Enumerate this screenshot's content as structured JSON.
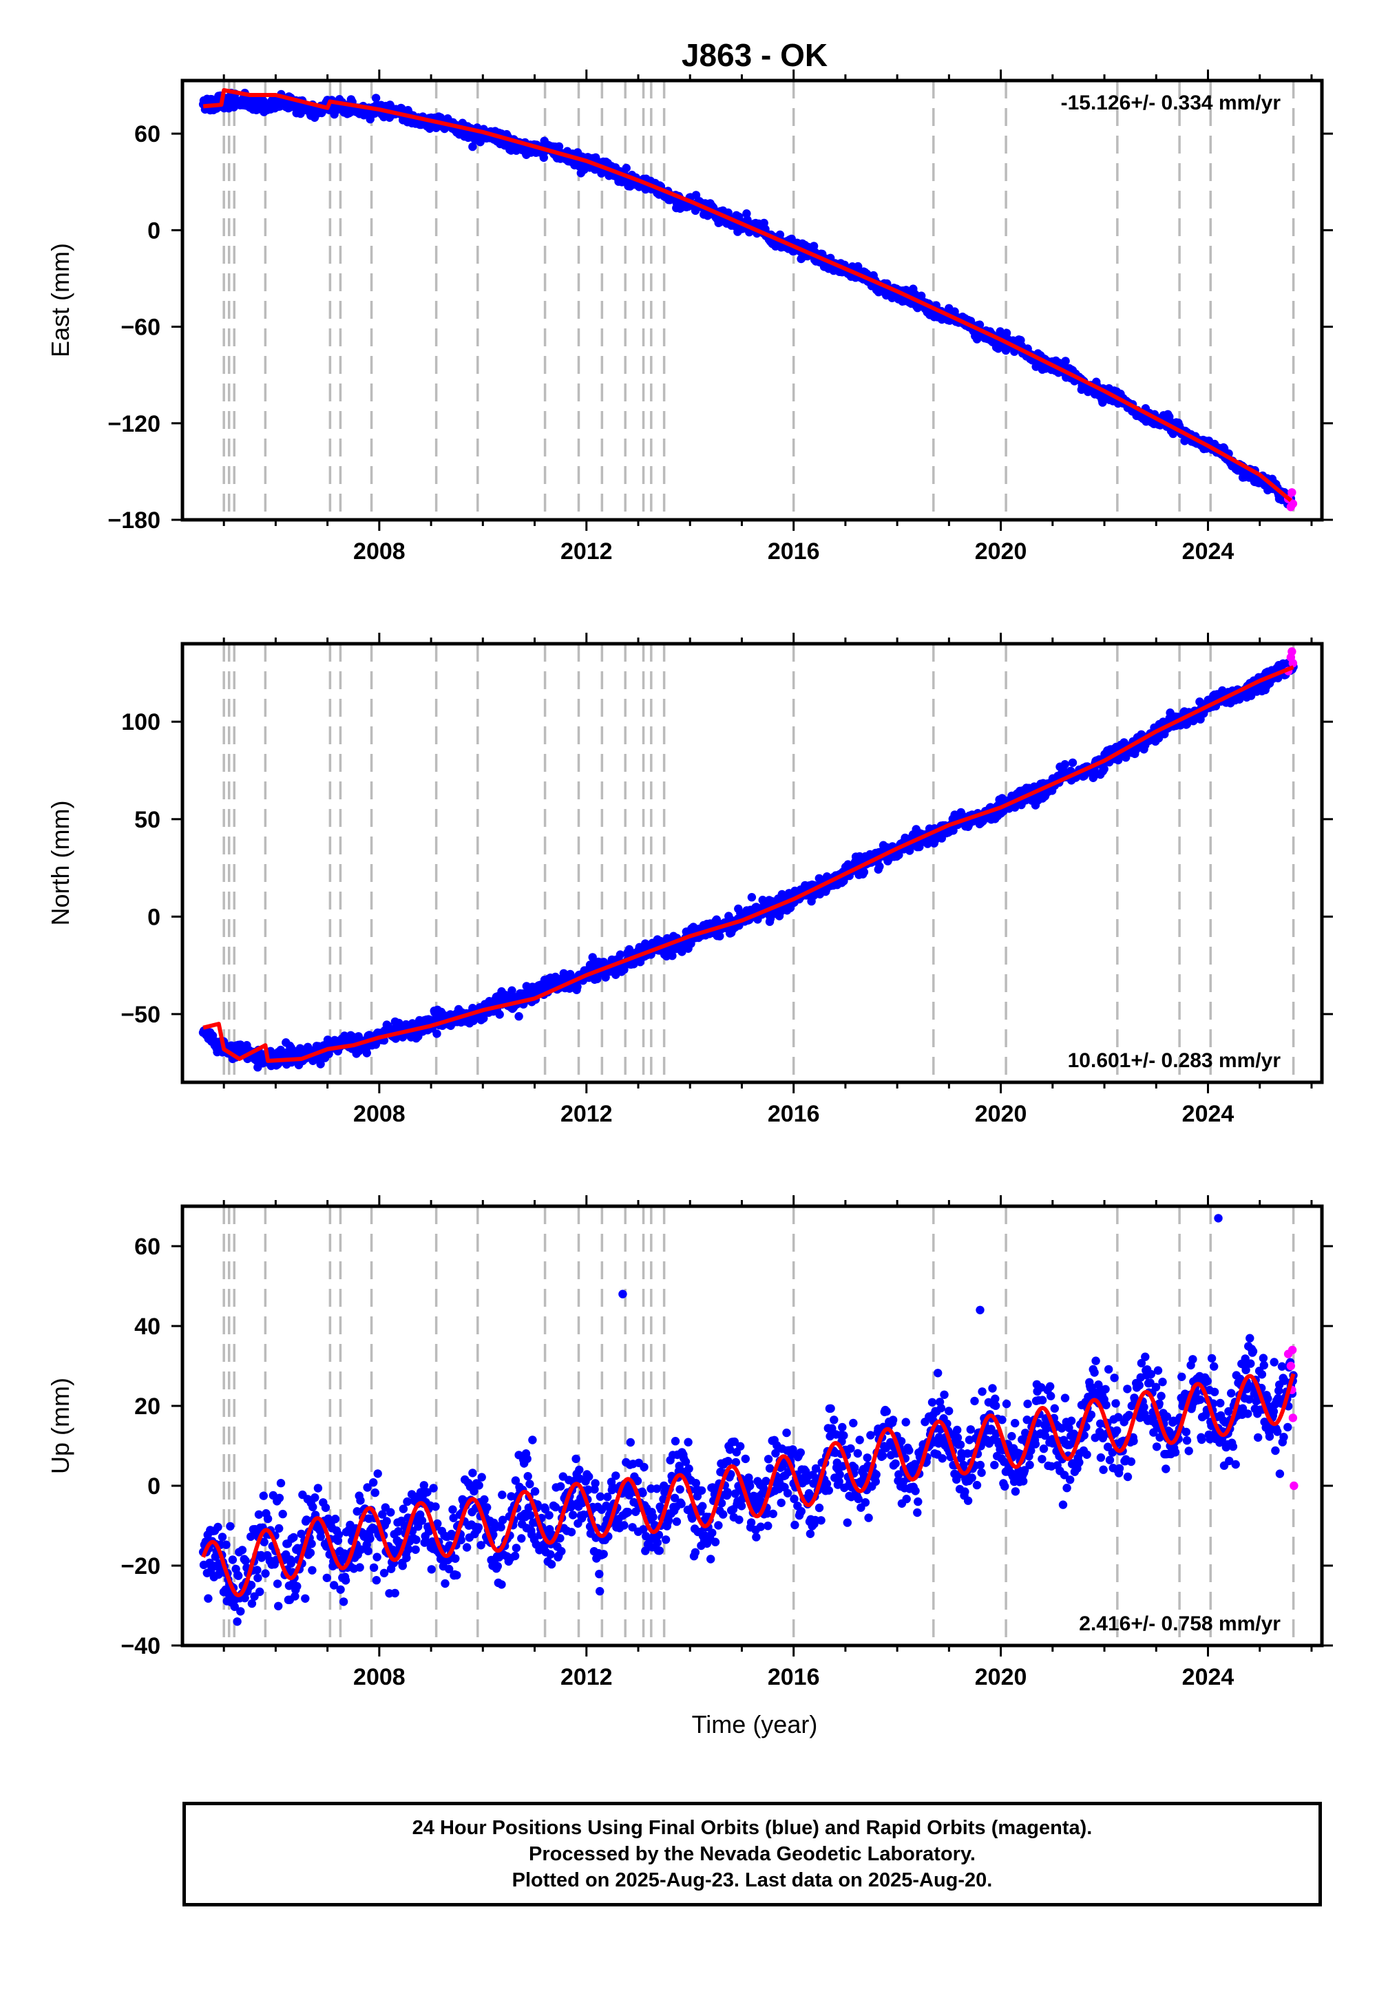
{
  "colors": {
    "final_orbits": "#0000ff",
    "rapid_orbits": "#ff00ff",
    "model": "#ff0000",
    "event_lines": "#bbbbbb",
    "frame": "#000000"
  },
  "chart_data": {
    "type": "scatter",
    "title": "J863 - OK",
    "xlabel": "Time (year)",
    "xlim": [
      2004.2,
      2026.2
    ],
    "xticks": [
      2008,
      2012,
      2016,
      2020,
      2024
    ],
    "event_lines": [
      2005.0,
      2005.1,
      2005.2,
      2005.8,
      2007.05,
      2007.25,
      2007.85,
      2009.1,
      2009.9,
      2011.2,
      2011.85,
      2012.3,
      2012.75,
      2013.1,
      2013.25,
      2013.5,
      2016.0,
      2018.7,
      2020.1,
      2022.25,
      2023.45,
      2024.05,
      2025.65
    ],
    "panels": [
      {
        "ylabel": "East (mm)",
        "ylim": [
          -180,
          93
        ],
        "yticks": [
          -180,
          -120,
          -60,
          0,
          60
        ],
        "rate": "-15.126+/- 0.334 mm/yr",
        "rate_position": "top-right",
        "model": [
          [
            2004.6,
            77
          ],
          [
            2004.95,
            78
          ],
          [
            2005.0,
            87
          ],
          [
            2005.5,
            84
          ],
          [
            2006.0,
            84
          ],
          [
            2006.5,
            80
          ],
          [
            2007.0,
            76
          ],
          [
            2007.05,
            80
          ],
          [
            2008.0,
            75
          ],
          [
            2009.0,
            68
          ],
          [
            2010.0,
            61
          ],
          [
            2011.0,
            52
          ],
          [
            2012.0,
            43
          ],
          [
            2013.0,
            31
          ],
          [
            2014.0,
            18
          ],
          [
            2015.0,
            4
          ],
          [
            2016.0,
            -10
          ],
          [
            2017.0,
            -24
          ],
          [
            2018.0,
            -38
          ],
          [
            2019.0,
            -53
          ],
          [
            2020.0,
            -68
          ],
          [
            2021.0,
            -84
          ],
          [
            2022.0,
            -100
          ],
          [
            2023.0,
            -117
          ],
          [
            2024.0,
            -134
          ],
          [
            2025.0,
            -152
          ],
          [
            2025.6,
            -168
          ]
        ],
        "trend": [
          [
            2004.6,
            80
          ],
          [
            2008.0,
            75
          ],
          [
            2012.0,
            43
          ],
          [
            2016.0,
            -10
          ],
          [
            2020.0,
            -68
          ],
          [
            2024.0,
            -134
          ],
          [
            2025.6,
            -168
          ]
        ],
        "scatter_sd": 2.2,
        "seasonal_amp": 1.5,
        "rapid": [
          [
            2025.55,
            -167
          ],
          [
            2025.6,
            -172
          ],
          [
            2025.62,
            -163
          ],
          [
            2025.64,
            -170
          ]
        ]
      },
      {
        "ylabel": "North (mm)",
        "ylim": [
          -85,
          140
        ],
        "yticks": [
          -50,
          0,
          50,
          100
        ],
        "rate": "10.601+/- 0.283 mm/yr",
        "rate_position": "bottom-right",
        "model": [
          [
            2004.6,
            -57
          ],
          [
            2004.9,
            -55
          ],
          [
            2005.0,
            -68
          ],
          [
            2005.3,
            -73
          ],
          [
            2005.8,
            -66
          ],
          [
            2005.85,
            -74
          ],
          [
            2006.5,
            -73
          ],
          [
            2007.0,
            -68
          ],
          [
            2007.5,
            -66
          ],
          [
            2008.0,
            -62
          ],
          [
            2009.0,
            -56
          ],
          [
            2010.0,
            -48
          ],
          [
            2011.0,
            -42
          ],
          [
            2012.0,
            -30
          ],
          [
            2013.0,
            -20
          ],
          [
            2014.0,
            -10
          ],
          [
            2015.0,
            -2
          ],
          [
            2016.0,
            9
          ],
          [
            2017.0,
            22
          ],
          [
            2018.0,
            35
          ],
          [
            2019.0,
            47
          ],
          [
            2020.0,
            56
          ],
          [
            2021.0,
            68
          ],
          [
            2022.0,
            80
          ],
          [
            2023.0,
            95
          ],
          [
            2024.0,
            108
          ],
          [
            2025.0,
            121
          ],
          [
            2025.65,
            128
          ]
        ],
        "trend": [
          [
            2004.6,
            -57
          ],
          [
            2005.0,
            -68
          ],
          [
            2006.0,
            -73
          ],
          [
            2007.0,
            -68
          ],
          [
            2008.0,
            -62
          ],
          [
            2010.0,
            -48
          ],
          [
            2012.0,
            -30
          ],
          [
            2014.0,
            -10
          ],
          [
            2016.0,
            9
          ],
          [
            2018.0,
            35
          ],
          [
            2020.0,
            56
          ],
          [
            2022.0,
            80
          ],
          [
            2024.0,
            108
          ],
          [
            2025.65,
            128
          ]
        ],
        "scatter_sd": 2.2,
        "seasonal_amp": 1.2,
        "rapid": [
          [
            2025.55,
            126
          ],
          [
            2025.6,
            133
          ],
          [
            2025.62,
            136
          ],
          [
            2025.64,
            130
          ]
        ]
      },
      {
        "ylabel": "Up (mm)",
        "ylim": [
          -40,
          70
        ],
        "yticks": [
          -40,
          -20,
          0,
          20,
          40,
          60
        ],
        "rate": "2.416+/- 0.758 mm/yr",
        "rate_position": "bottom-right",
        "trend": [
          [
            2004.6,
            -20
          ],
          [
            2005.0,
            -22
          ],
          [
            2006.0,
            -17
          ],
          [
            2008.0,
            -12
          ],
          [
            2010.0,
            -10
          ],
          [
            2012.0,
            -6
          ],
          [
            2014.0,
            -4
          ],
          [
            2016.0,
            1
          ],
          [
            2018.0,
            8
          ],
          [
            2020.0,
            11
          ],
          [
            2022.0,
            15
          ],
          [
            2024.0,
            19
          ],
          [
            2025.0,
            21
          ],
          [
            2025.65,
            24
          ]
        ],
        "scatter_sd": 5.0,
        "seasonal_amp": 5.5,
        "seasonal_phase": 0.55,
        "outliers": [
          [
            2012.7,
            48
          ],
          [
            2024.2,
            67
          ],
          [
            2019.6,
            44
          ]
        ],
        "rapid": [
          [
            2025.55,
            33
          ],
          [
            2025.6,
            30
          ],
          [
            2025.62,
            24
          ],
          [
            2025.64,
            17
          ],
          [
            2025.66,
            0
          ],
          [
            2025.63,
            34
          ]
        ]
      }
    ]
  },
  "footer": {
    "line1": "24 Hour Positions Using Final Orbits (blue) and Rapid Orbits (magenta).",
    "line2": "Processed by the Nevada Geodetic Laboratory.",
    "line3": "Plotted on 2025-Aug-23. Last data on 2025-Aug-20."
  }
}
